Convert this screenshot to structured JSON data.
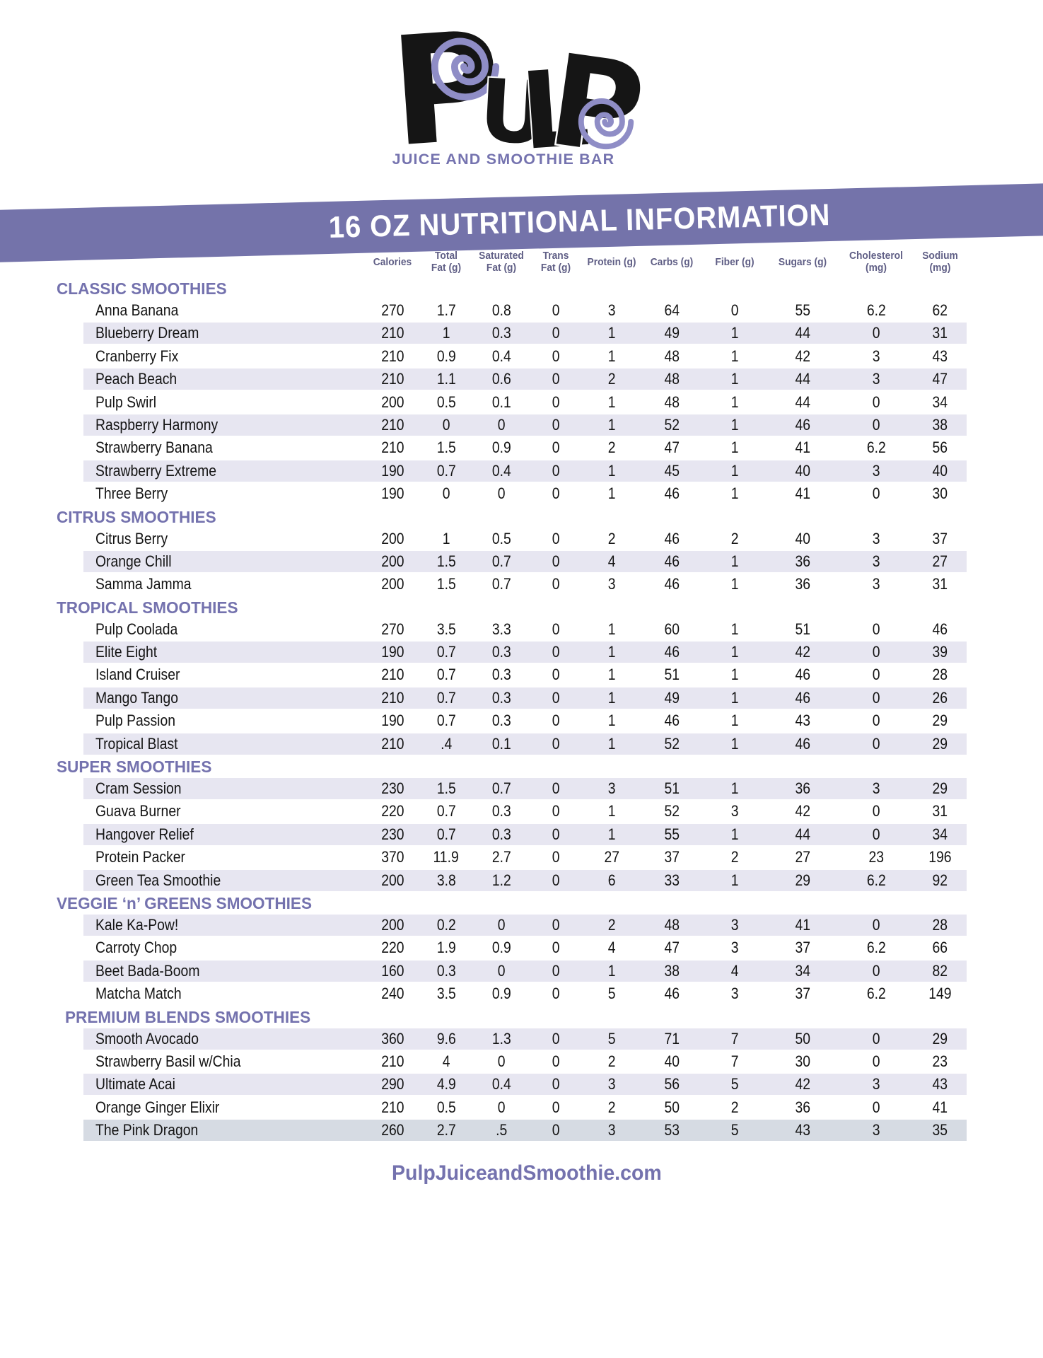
{
  "logo": {
    "letters": [
      "P",
      "U",
      "L",
      "P"
    ],
    "tagline": "JUICE AND SMOOTHIE BAR",
    "spiral_color": "#8f8dc6",
    "letter_color": "#151515"
  },
  "banner": {
    "title": "16 OZ NUTRITIONAL INFORMATION",
    "color": "#7473aa"
  },
  "table": {
    "columns": [
      [
        "Calories"
      ],
      [
        "Total",
        "Fat (g)"
      ],
      [
        "Saturated",
        "Fat (g)"
      ],
      [
        "Trans",
        "Fat (g)"
      ],
      [
        "Protein (g)"
      ],
      [
        "Carbs (g)"
      ],
      [
        "Fiber (g)"
      ],
      [
        "Sugars (g)"
      ],
      [
        "Cholesterol",
        "(mg)"
      ],
      [
        "Sodium",
        "(mg)"
      ]
    ],
    "row_shade_color": "#e7e6f1",
    "sections": [
      {
        "name": "CLASSIC SMOOTHIES",
        "shade_first_row": false,
        "rows": [
          {
            "item": "Anna Banana",
            "values": [
              "270",
              "1.7",
              "0.8",
              "0",
              "3",
              "64",
              "0",
              "55",
              "6.2",
              "62"
            ]
          },
          {
            "item": "Blueberry Dream",
            "values": [
              "210",
              "1",
              "0.3",
              "0",
              "1",
              "49",
              "1",
              "44",
              "0",
              "31"
            ]
          },
          {
            "item": "Cranberry Fix",
            "values": [
              "210",
              "0.9",
              "0.4",
              "0",
              "1",
              "48",
              "1",
              "42",
              "3",
              "43"
            ]
          },
          {
            "item": "Peach Beach",
            "values": [
              "210",
              "1.1",
              "0.6",
              "0",
              "2",
              "48",
              "1",
              "44",
              "3",
              "47"
            ]
          },
          {
            "item": "Pulp Swirl",
            "values": [
              "200",
              "0.5",
              "0.1",
              "0",
              "1",
              "48",
              "1",
              "44",
              "0",
              "34"
            ]
          },
          {
            "item": "Raspberry Harmony",
            "values": [
              "210",
              "0",
              "0",
              "0",
              "1",
              "52",
              "1",
              "46",
              "0",
              "38"
            ]
          },
          {
            "item": "Strawberry Banana",
            "values": [
              "210",
              "1.5",
              "0.9",
              "0",
              "2",
              "47",
              "1",
              "41",
              "6.2",
              "56"
            ]
          },
          {
            "item": "Strawberry Extreme",
            "values": [
              "190",
              "0.7",
              "0.4",
              "0",
              "1",
              "45",
              "1",
              "40",
              "3",
              "40"
            ]
          },
          {
            "item": "Three Berry",
            "values": [
              "190",
              "0",
              "0",
              "0",
              "1",
              "46",
              "1",
              "41",
              "0",
              "30"
            ]
          }
        ]
      },
      {
        "name": "CITRUS SMOOTHIES",
        "shade_first_row": false,
        "rows": [
          {
            "item": "Citrus Berry",
            "values": [
              "200",
              "1",
              "0.5",
              "0",
              "2",
              "46",
              "2",
              "40",
              "3",
              "37"
            ]
          },
          {
            "item": "Orange Chill",
            "values": [
              "200",
              "1.5",
              "0.7",
              "0",
              "4",
              "46",
              "1",
              "36",
              "3",
              "27"
            ]
          },
          {
            "item": "Samma Jamma",
            "values": [
              "200",
              "1.5",
              "0.7",
              "0",
              "3",
              "46",
              "1",
              "36",
              "3",
              "31"
            ]
          }
        ]
      },
      {
        "name": "TROPICAL SMOOTHIES",
        "shade_first_row": false,
        "rows": [
          {
            "item": "Pulp Coolada",
            "values": [
              "270",
              "3.5",
              "3.3",
              "0",
              "1",
              "60",
              "1",
              "51",
              "0",
              "46"
            ]
          },
          {
            "item": "Elite Eight",
            "values": [
              "190",
              "0.7",
              "0.3",
              "0",
              "1",
              "46",
              "1",
              "42",
              "0",
              "39"
            ]
          },
          {
            "item": "Island Cruiser",
            "values": [
              "210",
              "0.7",
              "0.3",
              "0",
              "1",
              "51",
              "1",
              "46",
              "0",
              "28"
            ]
          },
          {
            "item": "Mango Tango",
            "values": [
              "210",
              "0.7",
              "0.3",
              "0",
              "1",
              "49",
              "1",
              "46",
              "0",
              "26"
            ]
          },
          {
            "item": "Pulp Passion",
            "values": [
              "190",
              "0.7",
              "0.3",
              "0",
              "1",
              "46",
              "1",
              "43",
              "0",
              "29"
            ]
          },
          {
            "item": "Tropical Blast",
            "values": [
              "210",
              ".4",
              "0.1",
              "0",
              "1",
              "52",
              "1",
              "46",
              "0",
              "29"
            ]
          }
        ]
      },
      {
        "name": "SUPER SMOOTHIES",
        "shade_first_row": true,
        "rows": [
          {
            "item": "Cram Session",
            "values": [
              "230",
              "1.5",
              "0.7",
              "0",
              "3",
              "51",
              "1",
              "36",
              "3",
              "29"
            ]
          },
          {
            "item": "Guava Burner",
            "values": [
              "220",
              "0.7",
              "0.3",
              "0",
              "1",
              "52",
              "3",
              "42",
              "0",
              "31"
            ]
          },
          {
            "item": "Hangover Relief",
            "values": [
              "230",
              "0.7",
              "0.3",
              "0",
              "1",
              "55",
              "1",
              "44",
              "0",
              "34"
            ]
          },
          {
            "item": "Protein Packer",
            "values": [
              "370",
              "11.9",
              "2.7",
              "0",
              "27",
              "37",
              "2",
              "27",
              "23",
              "196"
            ]
          },
          {
            "item": "Green Tea Smoothie",
            "values": [
              "200",
              "3.8",
              "1.2",
              "0",
              "6",
              "33",
              "1",
              "29",
              "6.2",
              "92"
            ]
          }
        ]
      },
      {
        "name": "VEGGIE ‘n’ GREENS SMOOTHIES",
        "shade_first_row": true,
        "rows": [
          {
            "item": "Kale Ka-Pow!",
            "values": [
              "200",
              "0.2",
              "0",
              "0",
              "2",
              "48",
              "3",
              "41",
              "0",
              "28"
            ]
          },
          {
            "item": "Carroty Chop",
            "values": [
              "220",
              "1.9",
              "0.9",
              "0",
              "4",
              "47",
              "3",
              "37",
              "6.2",
              "66"
            ]
          },
          {
            "item": "Beet Bada-Boom",
            "values": [
              "160",
              "0.3",
              "0",
              "0",
              "1",
              "38",
              "4",
              "34",
              "0",
              "82"
            ]
          },
          {
            "item": "Matcha Match",
            "values": [
              "240",
              "3.5",
              "0.9",
              "0",
              "5",
              "46",
              "3",
              "37",
              "6.2",
              "149"
            ]
          }
        ]
      },
      {
        "name": "PREMIUM BLENDS SMOOTHIES",
        "shade_first_row": true,
        "rows": [
          {
            "item": "Smooth Avocado",
            "values": [
              "360",
              "9.6",
              "1.3",
              "0",
              "5",
              "71",
              "7",
              "50",
              "0",
              "29"
            ]
          },
          {
            "item": "Strawberry Basil w/Chia",
            "values": [
              "210",
              "4",
              "0",
              "0",
              "2",
              "40",
              "7",
              "30",
              "0",
              "23"
            ]
          },
          {
            "item": "Ultimate Acai",
            "values": [
              "290",
              "4.9",
              "0.4",
              "0",
              "3",
              "56",
              "5",
              "42",
              "3",
              "43"
            ]
          },
          {
            "item": "Orange Ginger Elixir",
            "values": [
              "210",
              "0.5",
              "0",
              "0",
              "2",
              "50",
              "2",
              "36",
              "0",
              "41"
            ]
          },
          {
            "item": "The Pink Dragon",
            "values": [
              "260",
              "2.7",
              ".5",
              "0",
              "3",
              "53",
              "5",
              "43",
              "3",
              "35"
            ],
            "band_color": "#d6dbe3"
          }
        ]
      }
    ]
  },
  "footer": {
    "website": "PulpJuiceandSmoothie.com"
  }
}
